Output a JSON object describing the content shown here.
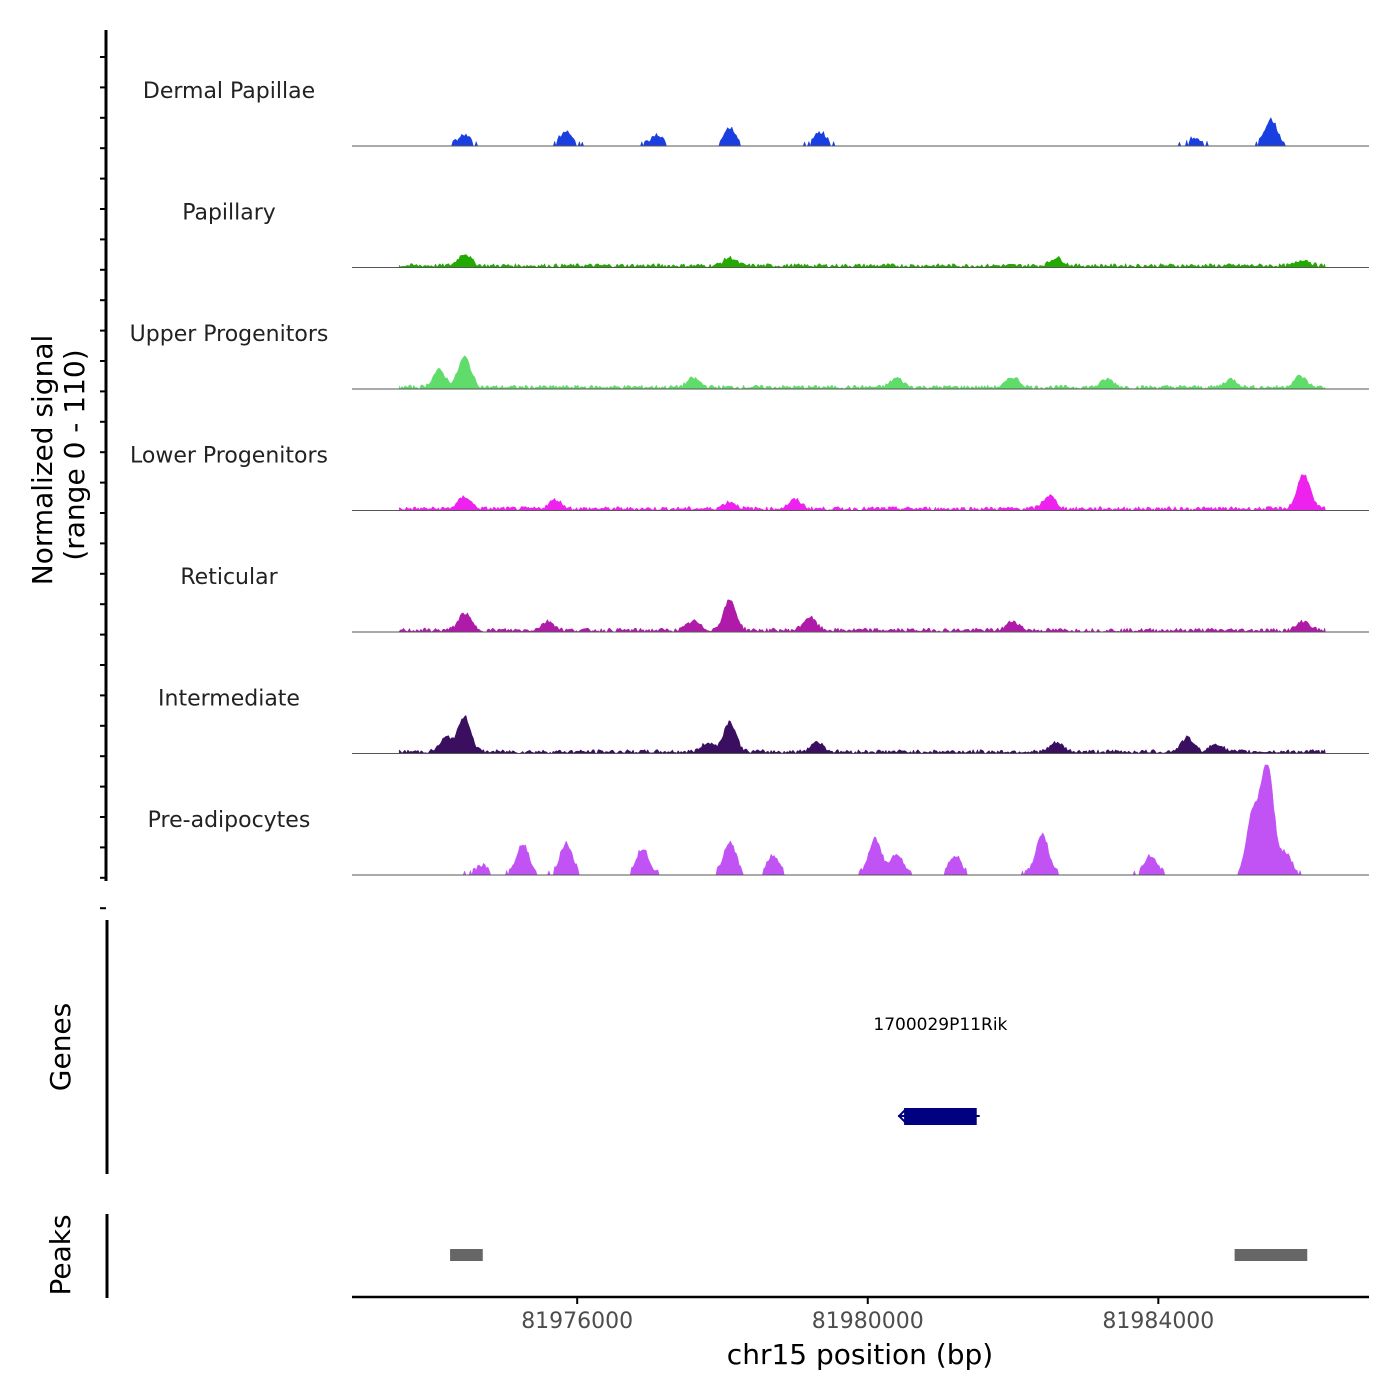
{
  "chart_data": {
    "type": "area",
    "title": "",
    "ylabel_line1": "Normalized signal",
    "ylabel_line2": "(range 0 - 110)",
    "ylim": [
      0,
      110
    ],
    "xlabel": "chr15 position (bp)",
    "xlim": [
      81972900,
      81986900
    ],
    "x_ticks": [
      {
        "value": 81976000,
        "label": "81976000"
      },
      {
        "value": 81980000,
        "label": "81980000"
      },
      {
        "value": 81984000,
        "label": "81984000"
      }
    ],
    "signal_start": 81973550,
    "signal_end": 81986300,
    "tracks": [
      {
        "name": "Dermal Papillae",
        "color": "#1a3fe0",
        "mode": "blocks",
        "peaks": [
          {
            "pos": 81974450,
            "height": 10
          },
          {
            "pos": 81975850,
            "height": 14
          },
          {
            "pos": 81977100,
            "height": 10
          },
          {
            "pos": 81978100,
            "height": 17
          },
          {
            "pos": 81979350,
            "height": 12
          },
          {
            "pos": 81985550,
            "height": 25
          },
          {
            "pos": 81984500,
            "height": 7
          }
        ]
      },
      {
        "name": "Papillary",
        "color": "#22aa00",
        "mode": "continuous",
        "peaks": [
          {
            "pos": 81974450,
            "height": 12
          },
          {
            "pos": 81978100,
            "height": 8
          },
          {
            "pos": 81982600,
            "height": 8
          },
          {
            "pos": 81986000,
            "height": 6
          }
        ]
      },
      {
        "name": "Upper Progenitors",
        "color": "#5fdc6a",
        "mode": "continuous",
        "peaks": [
          {
            "pos": 81974100,
            "height": 17
          },
          {
            "pos": 81974450,
            "height": 30
          },
          {
            "pos": 81977600,
            "height": 9
          },
          {
            "pos": 81980400,
            "height": 9
          },
          {
            "pos": 81982000,
            "height": 10
          },
          {
            "pos": 81983300,
            "height": 8
          },
          {
            "pos": 81985000,
            "height": 8
          },
          {
            "pos": 81985950,
            "height": 11
          }
        ]
      },
      {
        "name": "Lower Progenitors",
        "color": "#ee22ee",
        "mode": "continuous",
        "peaks": [
          {
            "pos": 81974450,
            "height": 12
          },
          {
            "pos": 81975700,
            "height": 9
          },
          {
            "pos": 81978100,
            "height": 7
          },
          {
            "pos": 81979000,
            "height": 9
          },
          {
            "pos": 81982500,
            "height": 13
          },
          {
            "pos": 81986000,
            "height": 35
          }
        ]
      },
      {
        "name": "Reticular",
        "color": "#b01aa8",
        "mode": "continuous",
        "peaks": [
          {
            "pos": 81974450,
            "height": 17
          },
          {
            "pos": 81975600,
            "height": 9
          },
          {
            "pos": 81977600,
            "height": 9
          },
          {
            "pos": 81978100,
            "height": 30
          },
          {
            "pos": 81979200,
            "height": 13
          },
          {
            "pos": 81982000,
            "height": 9
          },
          {
            "pos": 81986000,
            "height": 9
          }
        ]
      },
      {
        "name": "Intermediate",
        "color": "#3b0f5f",
        "mode": "continuous",
        "peaks": [
          {
            "pos": 81974200,
            "height": 14
          },
          {
            "pos": 81974450,
            "height": 35
          },
          {
            "pos": 81977800,
            "height": 9
          },
          {
            "pos": 81978100,
            "height": 30
          },
          {
            "pos": 81979300,
            "height": 10
          },
          {
            "pos": 81982600,
            "height": 9
          },
          {
            "pos": 81984400,
            "height": 14
          },
          {
            "pos": 81984800,
            "height": 8
          }
        ]
      },
      {
        "name": "Pre-adipocytes",
        "color": "#c153f5",
        "mode": "blocks",
        "peaks": [
          {
            "pos": 81974700,
            "height": 8
          },
          {
            "pos": 81975250,
            "height": 30
          },
          {
            "pos": 81975850,
            "height": 30
          },
          {
            "pos": 81976900,
            "height": 25
          },
          {
            "pos": 81978100,
            "height": 32
          },
          {
            "pos": 81978700,
            "height": 18
          },
          {
            "pos": 81980100,
            "height": 35
          },
          {
            "pos": 81980400,
            "height": 20
          },
          {
            "pos": 81981200,
            "height": 18
          },
          {
            "pos": 81982400,
            "height": 40
          },
          {
            "pos": 81983900,
            "height": 18
          },
          {
            "pos": 81985300,
            "height": 60
          },
          {
            "pos": 81985500,
            "height": 110
          },
          {
            "pos": 81985750,
            "height": 20
          }
        ]
      }
    ],
    "genes": [
      {
        "name": "1700029P11Rik",
        "start": 81980500,
        "end": 81981500,
        "strand": "-",
        "color": "#000080"
      }
    ],
    "genes_label": "Genes",
    "peaks_label": "Peaks",
    "peak_regions": [
      {
        "start": 81974250,
        "end": 81974700
      },
      {
        "start": 81985050,
        "end": 81986050
      }
    ],
    "peak_color": "#666666"
  }
}
